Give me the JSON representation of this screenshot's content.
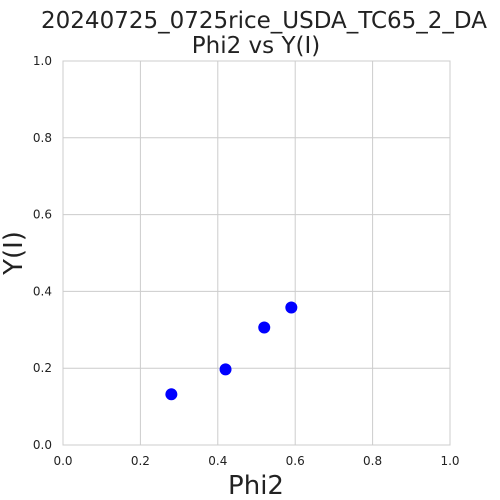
{
  "chart_data": {
    "type": "scatter",
    "title": "20240725_0725rice_USDA_TC65_2_DA",
    "subtitle": "Phi2 vs Y(I)",
    "xlabel": "Phi2",
    "ylabel": "Y(I)",
    "xlim": [
      0.0,
      1.0
    ],
    "ylim": [
      0.0,
      1.0
    ],
    "xticks": [
      "0.0",
      "0.2",
      "0.4",
      "0.6",
      "0.8",
      "1.0"
    ],
    "yticks": [
      "0.0",
      "0.2",
      "0.4",
      "0.6",
      "0.8",
      "1.0"
    ],
    "grid": true,
    "point_color": "#0000ff",
    "points": [
      {
        "x": 0.28,
        "y": 0.132
      },
      {
        "x": 0.42,
        "y": 0.197
      },
      {
        "x": 0.52,
        "y": 0.306
      },
      {
        "x": 0.59,
        "y": 0.358
      }
    ]
  }
}
